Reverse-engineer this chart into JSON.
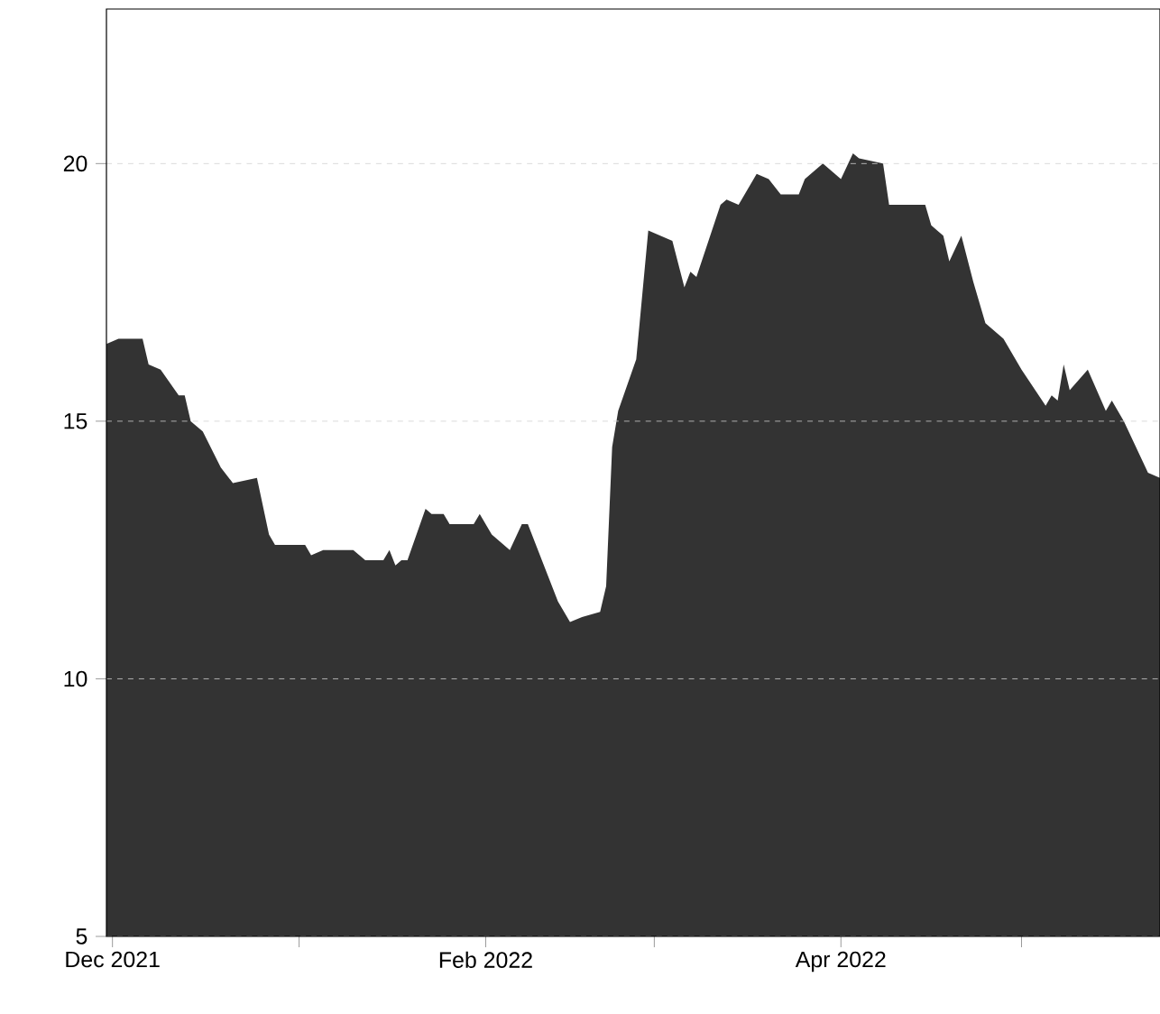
{
  "chart_data": {
    "type": "area",
    "color": "#333333",
    "grid": "y",
    "x": [
      "2021-11-30",
      "2021-12-02",
      "2021-12-06",
      "2021-12-07",
      "2021-12-09",
      "2021-12-12",
      "2021-12-13",
      "2021-12-14",
      "2021-12-16",
      "2021-12-19",
      "2021-12-21",
      "2021-12-25",
      "2021-12-27",
      "2021-12-28",
      "2022-01-02",
      "2022-01-03",
      "2022-01-05",
      "2022-01-10",
      "2022-01-12",
      "2022-01-15",
      "2022-01-16",
      "2022-01-17",
      "2022-01-18",
      "2022-01-19",
      "2022-01-22",
      "2022-01-23",
      "2022-01-25",
      "2022-01-26",
      "2022-01-30",
      "2022-01-31",
      "2022-02-02",
      "2022-02-05",
      "2022-02-07",
      "2022-02-08",
      "2022-02-11",
      "2022-02-13",
      "2022-02-15",
      "2022-02-17",
      "2022-02-20",
      "2022-02-21",
      "2022-02-22",
      "2022-02-23",
      "2022-02-26",
      "2022-02-28",
      "2022-03-04",
      "2022-03-06",
      "2022-03-07",
      "2022-03-08",
      "2022-03-12",
      "2022-03-13",
      "2022-03-15",
      "2022-03-18",
      "2022-03-20",
      "2022-03-22",
      "2022-03-25",
      "2022-03-26",
      "2022-03-29",
      "2022-04-01",
      "2022-04-03",
      "2022-04-04",
      "2022-04-08",
      "2022-04-09",
      "2022-04-15",
      "2022-04-16",
      "2022-04-18",
      "2022-04-19",
      "2022-04-21",
      "2022-04-23",
      "2022-04-25",
      "2022-04-28",
      "2022-05-01",
      "2022-05-05",
      "2022-05-06",
      "2022-05-07",
      "2022-05-08",
      "2022-05-09",
      "2022-05-12",
      "2022-05-15",
      "2022-05-16",
      "2022-05-18",
      "2022-05-22",
      "2022-05-24"
    ],
    "values": [
      16.5,
      16.6,
      16.6,
      16.1,
      16.0,
      15.5,
      15.5,
      15.0,
      14.8,
      14.1,
      13.8,
      13.9,
      12.8,
      12.6,
      12.6,
      12.4,
      12.5,
      12.5,
      12.3,
      12.3,
      12.5,
      12.2,
      12.3,
      12.3,
      13.3,
      13.2,
      13.2,
      13.0,
      13.0,
      13.2,
      12.8,
      12.5,
      13.0,
      13.0,
      12.1,
      11.5,
      11.1,
      11.2,
      11.3,
      11.8,
      14.5,
      15.2,
      16.2,
      18.7,
      18.5,
      17.6,
      17.9,
      17.8,
      19.2,
      19.3,
      19.2,
      19.8,
      19.7,
      19.4,
      19.4,
      19.7,
      20.0,
      19.7,
      20.2,
      20.1,
      20.0,
      19.2,
      19.2,
      18.8,
      18.6,
      18.1,
      18.6,
      17.7,
      16.9,
      16.6,
      16.0,
      15.3,
      15.5,
      15.4,
      16.1,
      15.6,
      16.0,
      15.2,
      15.4,
      15.0,
      14.0,
      13.9
    ],
    "xlim": [
      "2021-11-30",
      "2022-05-24"
    ],
    "ylim": [
      5,
      23
    ],
    "xticks": [
      {
        "value": "2021-12-01",
        "label": "Dec 2021"
      },
      {
        "value": "2022-01-01",
        "label": null
      },
      {
        "value": "2022-02-01",
        "label": "Feb 2022"
      },
      {
        "value": "2022-03-01",
        "label": null
      },
      {
        "value": "2022-04-01",
        "label": "Apr 2022"
      },
      {
        "value": "2022-05-01",
        "label": null
      }
    ],
    "yticks": [
      5,
      10,
      15,
      20
    ]
  }
}
